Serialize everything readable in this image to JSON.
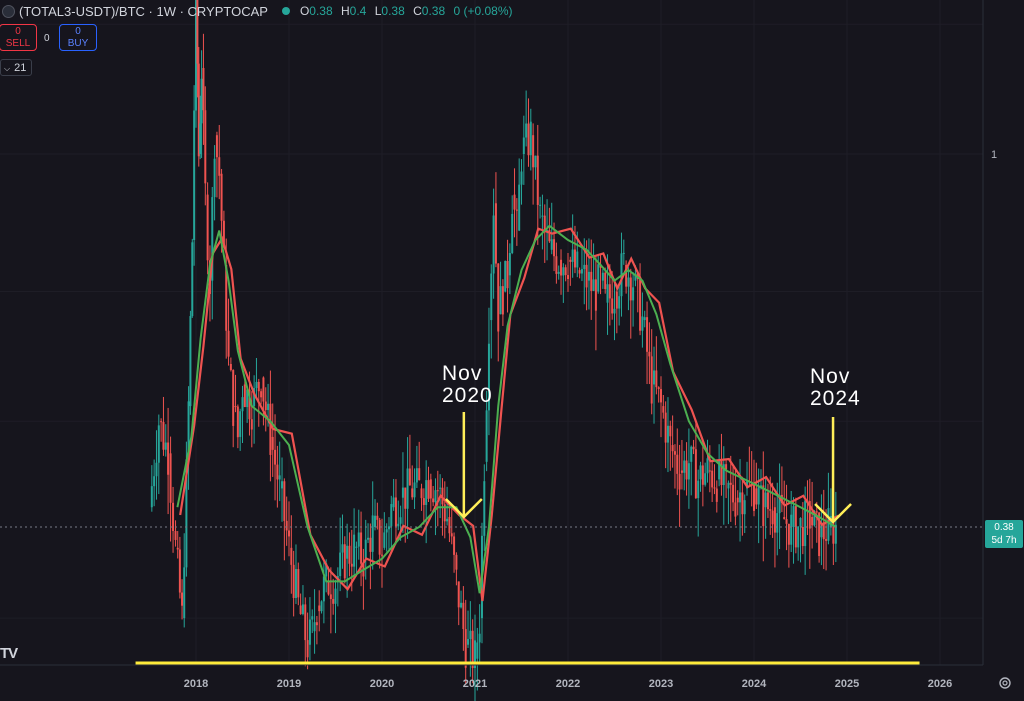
{
  "header": {
    "symbol": "(TOTAL3-USDT)/BTC · 1W · CRYPTOCAP",
    "ohlc": {
      "o_label": "O",
      "o": "0.38",
      "h_label": "H",
      "h": "0.4",
      "l_label": "L",
      "l": "0.38",
      "c_label": "C",
      "c": "0.38",
      "change": "0 (+0.08%)"
    }
  },
  "trade": {
    "sell_value": "0",
    "sell_label": "SELL",
    "spread": "0",
    "buy_value": "0",
    "buy_label": "BUY"
  },
  "indicator": {
    "value": "21"
  },
  "price_badge": {
    "price": "0.38",
    "countdown": "5d 7h"
  },
  "logo_text": "TV",
  "colors": {
    "background": "#16151d",
    "up": "#26a69a",
    "down": "#ef5350",
    "ema_fast": "#4caf50",
    "ema_slow": "#ef5350",
    "support": "#ffeb3b",
    "annotation_arrow": "#ffee58"
  },
  "chart_data": {
    "type": "line",
    "title": "",
    "xlabel": "",
    "ylabel": "",
    "x_ticks": [
      "2018",
      "2019",
      "2020",
      "2021",
      "2022",
      "2023",
      "2024",
      "2025",
      "2026"
    ],
    "y_ticks": [
      "1"
    ],
    "ylim": [
      0.2,
      1.9
    ],
    "y_scale": "log",
    "grid": true,
    "last_price": 0.38,
    "series": [
      {
        "x": [
          2017.5,
          2017.6,
          2017.7,
          2017.78,
          2017.85,
          2017.92,
          2017.96,
          2018.0,
          2018.03,
          2018.06,
          2018.1,
          2018.15,
          2018.2,
          2018.25,
          2018.3,
          2018.35,
          2018.4,
          2018.45,
          2018.5,
          2018.6,
          2018.7,
          2018.8,
          2018.9,
          2019.0,
          2019.1,
          2019.2,
          2019.25,
          2019.3,
          2019.4,
          2019.5,
          2019.6,
          2019.7,
          2019.8,
          2019.9,
          2020.0,
          2020.1,
          2020.2,
          2020.3,
          2020.4,
          2020.5,
          2020.6,
          2020.7,
          2020.8,
          2020.9,
          2021.0,
          2021.05,
          2021.1,
          2021.15,
          2021.2,
          2021.25,
          2021.3,
          2021.35,
          2021.4,
          2021.45,
          2021.5,
          2021.6,
          2021.7,
          2021.8,
          2021.9,
          2022.0,
          2022.1,
          2022.2,
          2022.3,
          2022.35,
          2022.4,
          2022.5,
          2022.6,
          2022.7,
          2022.8,
          2022.9,
          2023.0,
          2023.1,
          2023.2,
          2023.3,
          2023.4,
          2023.5,
          2023.6,
          2023.7,
          2023.8,
          2023.9,
          2024.0,
          2024.1,
          2024.2,
          2024.3,
          2024.4,
          2024.5,
          2024.6,
          2024.7,
          2024.8,
          2024.88
        ],
        "values": [
          0.4,
          0.5,
          0.46,
          0.36,
          0.3,
          0.52,
          0.8,
          1.6,
          1.0,
          1.25,
          0.9,
          0.72,
          1.05,
          0.95,
          0.75,
          0.58,
          0.52,
          0.48,
          0.55,
          0.52,
          0.56,
          0.48,
          0.42,
          0.36,
          0.31,
          0.28,
          0.29,
          0.31,
          0.33,
          0.33,
          0.35,
          0.36,
          0.35,
          0.38,
          0.36,
          0.4,
          0.41,
          0.42,
          0.42,
          0.43,
          0.42,
          0.39,
          0.33,
          0.28,
          0.27,
          0.3,
          0.45,
          0.65,
          0.88,
          0.66,
          0.7,
          0.73,
          0.9,
          0.82,
          1.0,
          1.05,
          0.85,
          0.78,
          0.76,
          0.76,
          0.74,
          0.72,
          0.7,
          0.72,
          0.68,
          0.7,
          0.75,
          0.72,
          0.65,
          0.55,
          0.52,
          0.47,
          0.44,
          0.45,
          0.43,
          0.44,
          0.43,
          0.42,
          0.41,
          0.42,
          0.42,
          0.4,
          0.4,
          0.39,
          0.38,
          0.38,
          0.39,
          0.37,
          0.38,
          0.38
        ]
      },
      {
        "x": [
          2017.8,
          2017.95,
          2018.05,
          2018.15,
          2018.25,
          2018.35,
          2018.45,
          2018.6,
          2018.8,
          2019.0,
          2019.2,
          2019.4,
          2019.6,
          2019.8,
          2020.0,
          2020.2,
          2020.4,
          2020.6,
          2020.8,
          2020.95,
          2021.05,
          2021.15,
          2021.25,
          2021.35,
          2021.5,
          2021.65,
          2021.8,
          2022.0,
          2022.2,
          2022.35,
          2022.5,
          2022.65,
          2022.8,
          2022.95,
          2023.1,
          2023.3,
          2023.5,
          2023.7,
          2023.9,
          2024.1,
          2024.3,
          2024.5,
          2024.7,
          2024.88
        ],
        "values": [
          0.4,
          0.48,
          0.62,
          0.75,
          0.82,
          0.72,
          0.6,
          0.52,
          0.5,
          0.47,
          0.38,
          0.33,
          0.33,
          0.34,
          0.35,
          0.37,
          0.38,
          0.4,
          0.4,
          0.37,
          0.32,
          0.38,
          0.52,
          0.64,
          0.74,
          0.8,
          0.83,
          0.8,
          0.78,
          0.75,
          0.72,
          0.74,
          0.72,
          0.66,
          0.58,
          0.5,
          0.46,
          0.44,
          0.43,
          0.42,
          0.41,
          0.4,
          0.39,
          0.38
        ]
      }
    ],
    "support_level": 0.267,
    "annotations": [
      {
        "text_line1": "Nov",
        "text_line2": "2020",
        "x": 2020.88,
        "y": 0.39
      },
      {
        "text_line1": "Nov",
        "text_line2": "2024",
        "x": 2024.85,
        "y": 0.385
      }
    ]
  }
}
